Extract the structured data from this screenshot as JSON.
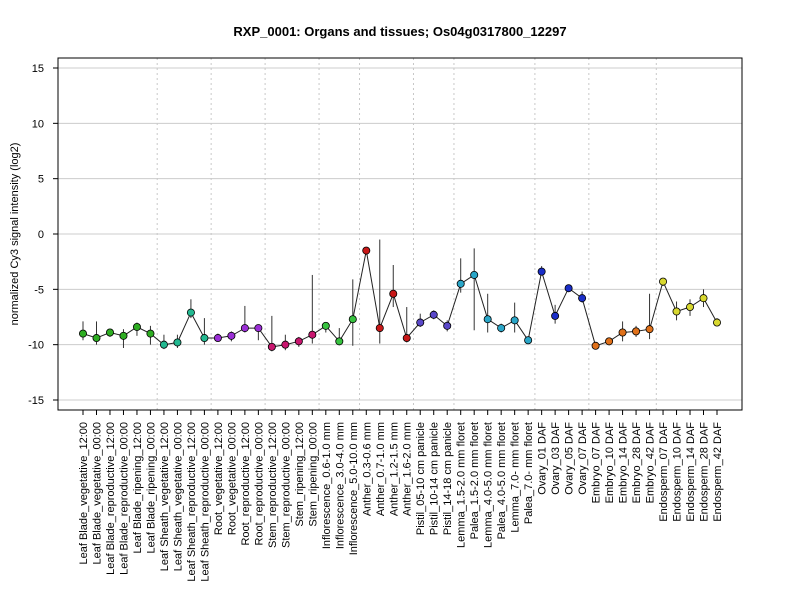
{
  "chart_data": {
    "type": "line",
    "title": "RXP_0001: Organs and tissues; Os04g0317800_12297",
    "xlabel": "",
    "ylabel": "normalized Cy3 signal intensity (log2)",
    "ylim": [
      -15,
      15
    ],
    "yticks": [
      "15",
      "10",
      "5",
      "0",
      "-5",
      "-10",
      "-15"
    ],
    "ytick_values": [
      15,
      10,
      5,
      0,
      -5,
      -10,
      -15
    ],
    "grid": "horizontal lines at y ticks; dotted vertical separators between organ groups",
    "categories": [
      "Leaf Blade_vegetative_12:00",
      "Leaf Blade_vegetative_00:00",
      "Leaf Blade_reproductive_12:00",
      "Leaf Blade_reproductive_00:00",
      "Leaf Blade_ripening_12:00",
      "Leaf Blade_ripening_00:00",
      "Leaf Sheath_vegetative_12:00",
      "Leaf Sheath_vegetative_00:00",
      "Leaf Sheath_reproductive_12:00",
      "Leaf Sheath_reproductive_00:00",
      "Root_vegetative_12:00",
      "Root_vegetative_00:00",
      "Root_reproductive_12:00",
      "Root_reproductive_00:00",
      "Stem_reproductive_12:00",
      "Stem_reproductive_00:00",
      "Stem_ripening_12:00",
      "Stem_ripening_00:00",
      "Inflorescence_0.6-1.0 mm",
      "Inflorescence_3.0-4.0 mm",
      "Inflorescence_5.0-10.0 mm",
      "Anther_0.3-0.6 mm",
      "Anther_0.7-1.0 mm",
      "Anther_1.2-1.5 mm",
      "Anther_1.6-2.0 mm",
      "Pistil_05-10 cm panicle",
      "Pistil_10-14 cm panicle",
      "Pistil_14-18 cm panicle",
      "Lemma_1.5-2.0 mm floret",
      "Palea_1.5-2.0 mm floret",
      "Lemma_4.0-5.0 mm floret",
      "Palea_4.0-5.0 mm floret",
      "Lemma_7.0- mm floret",
      "Palea_7.0- mm floret",
      "Ovary_01 DAF",
      "Ovary_03 DAF",
      "Ovary_05 DAF",
      "Ovary_07 DAF",
      "Embryo_07 DAF",
      "Embryo_10 DAF",
      "Embryo_14 DAF",
      "Embryo_28 DAF",
      "Embryo_42 DAF",
      "Endosperm_07 DAF",
      "Endosperm_10 DAF",
      "Endosperm_14 DAF",
      "Endosperm_28 DAF",
      "Endosperm_42 DAF"
    ],
    "series": [
      {
        "values": [
          -9.0,
          -9.4,
          -8.9,
          -9.2,
          -8.4,
          -9.0,
          -10.0,
          -9.8,
          -7.1,
          -9.4,
          -9.4,
          -9.2,
          -8.5,
          -8.5,
          -10.2,
          -10.0,
          -9.7,
          -9.1,
          -8.3,
          -9.7,
          -7.7,
          -1.5,
          -8.5,
          -5.4,
          -9.4,
          -8.0,
          -7.3,
          -8.3,
          -4.5,
          -3.7,
          -7.7,
          -8.5,
          -7.8,
          -9.6,
          -3.4,
          -7.4,
          -4.9,
          -5.8,
          -10.1,
          -9.7,
          -8.9,
          -8.8,
          -8.6,
          -4.3,
          -7.0,
          -6.6,
          -5.8,
          -8.0
        ],
        "err_low": [
          -9.6,
          -10.0,
          -9.3,
          -10.3,
          -9.2,
          -10.0,
          -10.4,
          -10.3,
          -7.6,
          -10.0,
          -9.7,
          -9.7,
          -8.9,
          -9.6,
          -10.6,
          -10.5,
          -10.2,
          -9.9,
          -8.9,
          -10.0,
          -10.1,
          -1.7,
          -9.9,
          -6.6,
          -9.8,
          -8.4,
          -7.7,
          -8.8,
          -5.3,
          -8.7,
          -8.9,
          -8.9,
          -8.9,
          -9.9,
          -3.7,
          -8.1,
          -5.2,
          -6.2,
          -10.3,
          -10.0,
          -9.7,
          -9.3,
          -9.5,
          -4.7,
          -7.8,
          -7.4,
          -6.6,
          -8.3
        ],
        "err_high": [
          -7.9,
          -7.9,
          -8.6,
          -8.6,
          -8.0,
          -8.3,
          -9.1,
          -9.1,
          -5.9,
          -7.6,
          -9.0,
          -8.8,
          -6.5,
          -8.3,
          -7.4,
          -9.1,
          -9.3,
          -3.7,
          -8.0,
          -8.5,
          -4.1,
          -1.2,
          -0.5,
          -2.8,
          -6.6,
          -7.2,
          -6.9,
          -7.8,
          -2.2,
          -1.3,
          -5.4,
          -8.1,
          -6.2,
          -9.3,
          -2.9,
          -6.4,
          -4.6,
          -5.2,
          -9.8,
          -9.4,
          -7.9,
          -8.3,
          -5.4,
          -4.0,
          -6.1,
          -5.9,
          -5.0,
          -7.6
        ]
      }
    ],
    "point_colors": [
      "#2ead22",
      "#2ead22",
      "#2ead22",
      "#2ead22",
      "#2ead22",
      "#2ead22",
      "#22b890",
      "#22b890",
      "#22b890",
      "#22b890",
      "#9b2fd6",
      "#9b2fd6",
      "#9b2fd6",
      "#9b2fd6",
      "#c9166f",
      "#c9166f",
      "#c9166f",
      "#c9166f",
      "#37c23f",
      "#37c23f",
      "#37c23f",
      "#c81818",
      "#c81818",
      "#c81818",
      "#c81818",
      "#5a48c9",
      "#5a48c9",
      "#5a48c9",
      "#2aa6c8",
      "#2aa6c8",
      "#2aa6c8",
      "#2aa6c8",
      "#2aa6c8",
      "#2aa6c8",
      "#1a2ec8",
      "#1a2ec8",
      "#1a2ec8",
      "#1a2ec8",
      "#e0711a",
      "#e0711a",
      "#e0711a",
      "#e0711a",
      "#e0711a",
      "#d8d830",
      "#d8d830",
      "#d8d830",
      "#d8d830",
      "#d8d830"
    ],
    "group_separators_after": [
      5,
      9,
      13,
      17,
      20,
      24,
      27,
      33,
      37,
      42
    ]
  }
}
